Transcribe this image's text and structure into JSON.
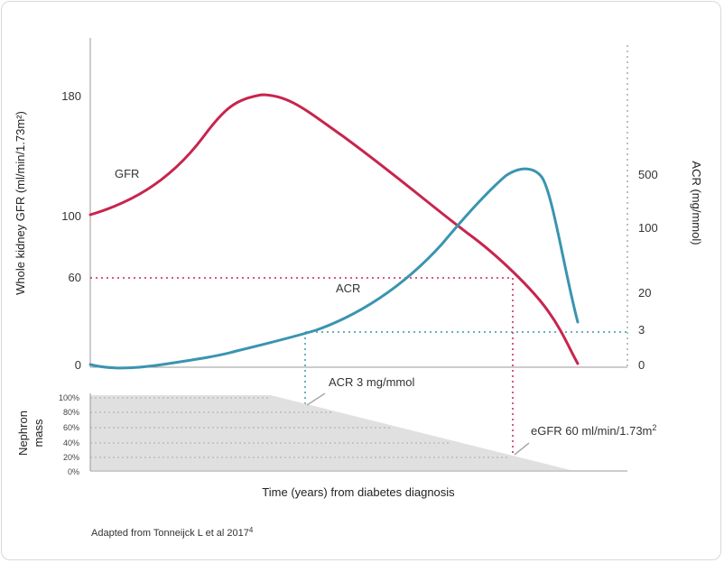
{
  "chart_data": {
    "type": "line",
    "colors": {
      "gfr": "#c8254e",
      "acr": "#3a94b0",
      "mass_fill": "#e0e0e0",
      "axis": "#999999"
    },
    "left_axis": {
      "label": "Whole kidney GFR (ml/min/1.73m²)",
      "ticks": [
        "180",
        "100",
        "60",
        "0"
      ]
    },
    "right_axis": {
      "label": "ACR (mg/mmol)",
      "ticks": [
        "500",
        "100",
        "20",
        "3",
        "0"
      ]
    },
    "series": [
      {
        "name": "GFR"
      },
      {
        "name": "ACR"
      }
    ],
    "annotations": {
      "acr_threshold": "ACR 3 mg/mmol",
      "egfr_threshold_prefix": "eGFR 60 ml/min/1.73m",
      "egfr_threshold_sup": "2"
    },
    "nephron": {
      "label_line1": "Nephron",
      "label_line2": "mass",
      "ticks": [
        "100%",
        "80%",
        "60%",
        "40%",
        "20%",
        "0%"
      ]
    },
    "xlabel": "Time (years) from diabetes diagnosis"
  },
  "source": {
    "text": "Adapted from Tonneijck L et al 2017",
    "sup": "4"
  }
}
